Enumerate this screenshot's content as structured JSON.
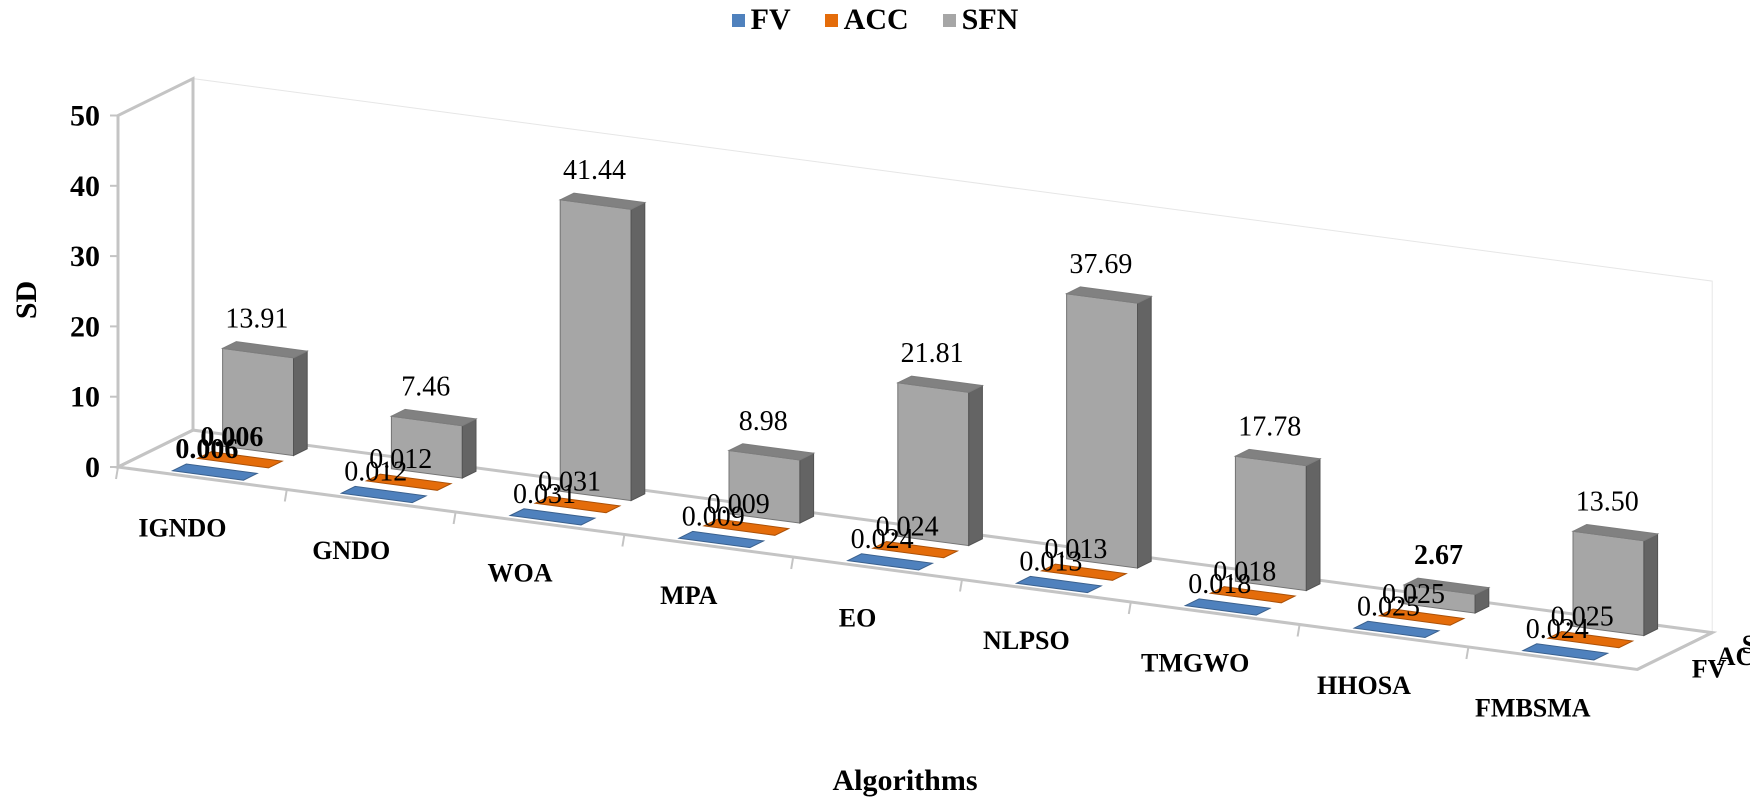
{
  "chart_data": {
    "type": "bar",
    "subtype": "3d-column",
    "title": "",
    "xlabel": "Algorithms",
    "ylabel": "SD",
    "ylim": [
      0,
      50
    ],
    "yticks": [
      "0",
      "10",
      "20",
      "30",
      "40",
      "50"
    ],
    "categories": [
      "IGNDO",
      "GNDO",
      "WOA",
      "MPA",
      "EO",
      "NLPSO",
      "TMGWO",
      "HHOSA",
      "FMBSMA"
    ],
    "depth_labels": [
      "FV",
      "ACC",
      "SFN"
    ],
    "legend_position": "top",
    "series": [
      {
        "name": "FV",
        "color": "#4F81BD",
        "values": [
          0.006,
          0.012,
          0.031,
          0.009,
          0.024,
          0.013,
          0.018,
          0.025,
          0.024
        ],
        "labels": [
          "0.006",
          "0.012",
          "0.031",
          "0.009",
          "0.024",
          "0.013",
          "0.018",
          "0.025",
          "0.024"
        ],
        "bold": [
          true,
          false,
          false,
          false,
          false,
          false,
          false,
          false,
          false
        ]
      },
      {
        "name": "ACC",
        "color": "#E46C0A",
        "values": [
          0.006,
          0.012,
          0.031,
          0.009,
          0.024,
          0.013,
          0.018,
          0.025,
          0.025
        ],
        "labels": [
          "0.006",
          "0.012",
          "0.031",
          "0.009",
          "0.024",
          "0.013",
          "0.018",
          "0.025",
          "0.025"
        ],
        "bold": [
          true,
          false,
          false,
          false,
          false,
          false,
          false,
          false,
          false
        ]
      },
      {
        "name": "SFN",
        "color": "#A6A6A6",
        "values": [
          13.91,
          7.46,
          41.44,
          8.98,
          21.81,
          37.69,
          17.78,
          2.67,
          13.5
        ],
        "labels": [
          "13.91",
          "7.46",
          "41.44",
          "8.98",
          "21.81",
          "37.69",
          "17.78",
          "2.67",
          "13.50"
        ],
        "bold": [
          false,
          false,
          false,
          false,
          false,
          false,
          false,
          true,
          false
        ]
      }
    ]
  }
}
